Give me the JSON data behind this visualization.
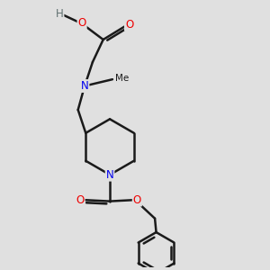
{
  "bg_color": "#e0e0e0",
  "bond_color": "#1a1a1a",
  "bond_width": 1.8,
  "atom_colors": {
    "N": "#0000ee",
    "O": "#ee0000",
    "C": "#1a1a1a",
    "H": "#607070"
  },
  "font_size": 8.5,
  "fig_width": 3.0,
  "fig_height": 3.0,
  "dpi": 100,
  "xlim": [
    0,
    10
  ],
  "ylim": [
    0,
    10
  ]
}
